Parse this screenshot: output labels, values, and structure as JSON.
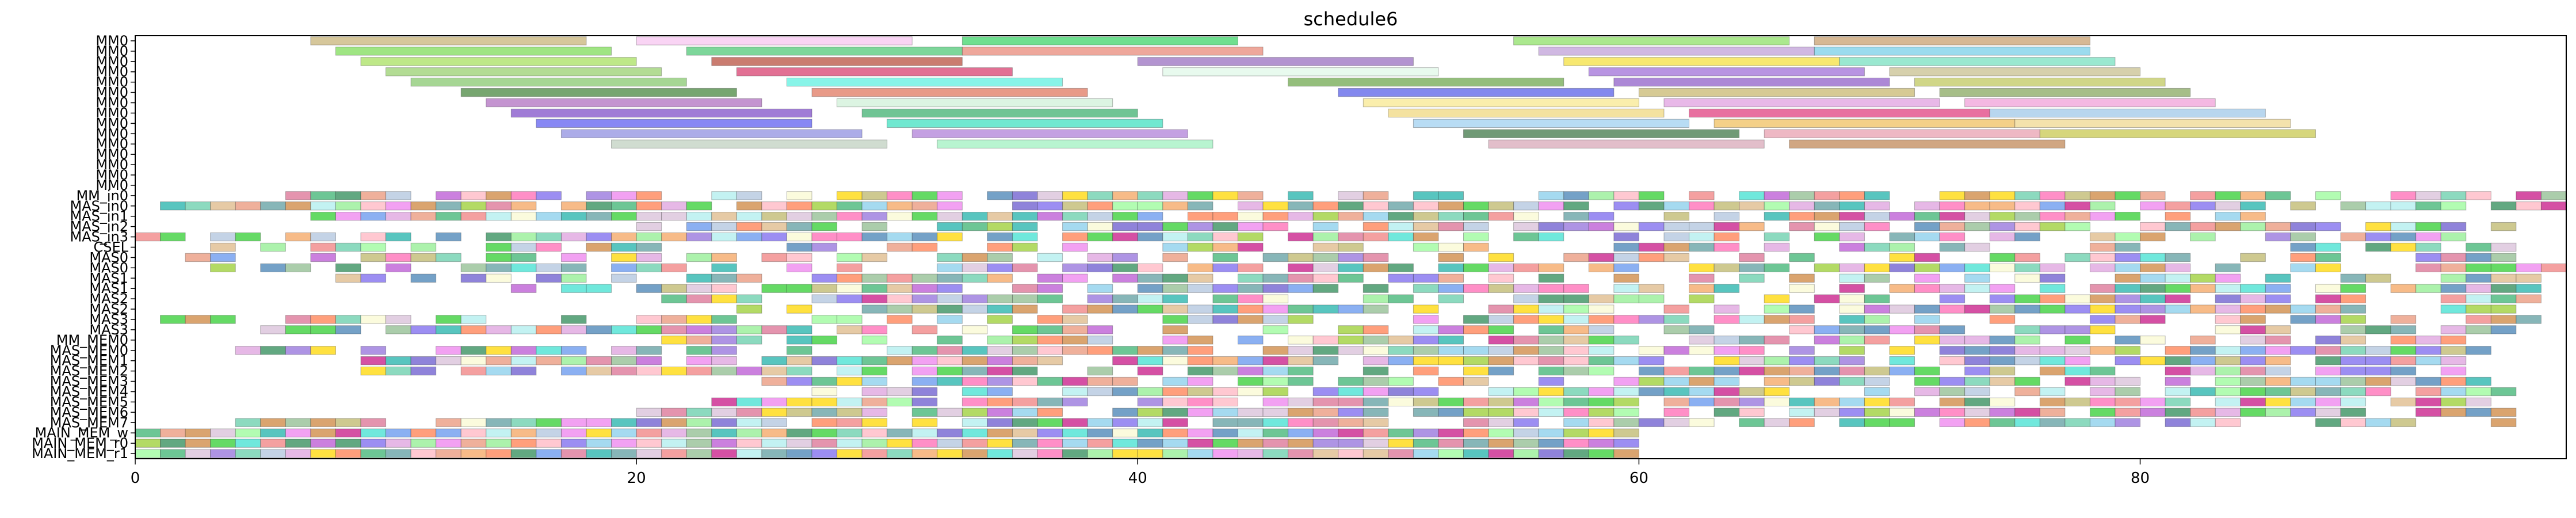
{
  "chart_data": {
    "type": "gantt",
    "title": "schedule6",
    "xlabel": "",
    "ylabel": "",
    "xlim": [
      0,
      97
    ],
    "x_ticks": [
      0,
      20,
      40,
      60,
      80
    ],
    "grid": false,
    "rows": [
      "MM0",
      "MM0",
      "MM0",
      "MM0",
      "MM0",
      "MM0",
      "MM0",
      "MM0",
      "MM0",
      "MM0",
      "MM0",
      "MM0",
      "MM0",
      "MM0",
      "MM0",
      "MM_in0",
      "MAS_in0",
      "MAS_in1",
      "MAS_in2",
      "MAS_in3",
      "CSEL",
      "MAS0",
      "MAS0",
      "MAS1",
      "MAS1",
      "MAS2",
      "MAS2",
      "MAS3",
      "MAS3",
      "MM_MEM0",
      "MAS_MEM0",
      "MAS_MEM1",
      "MAS_MEM2",
      "MAS_MEM3",
      "MAS_MEM4",
      "MAS_MEM5",
      "MAS_MEM6",
      "MAS_MEM7",
      "MAIN_MEM_w",
      "MAIN_MEM_r0",
      "MAIN_MEM_r1"
    ],
    "palette": [
      "#8fbc8f",
      "#ee82ee",
      "#3cb371",
      "#f08080",
      "#9370db",
      "#ffd700",
      "#40e0d0",
      "#b0c4de",
      "#90ee90",
      "#db7093",
      "#6495ed",
      "#f4a460",
      "#ba55d3",
      "#20b2aa",
      "#ff69b4",
      "#9acd32",
      "#87ceeb",
      "#cd853f",
      "#66cdaa",
      "#dda0dd",
      "#6a5acd",
      "#bdb76b",
      "#32cd32",
      "#ffb6c1",
      "#4682b4",
      "#e9967a",
      "#7b68ee",
      "#afeeee",
      "#c71585",
      "#deb887",
      "#2e8b57",
      "#fafad2",
      "#5f9ea0",
      "#ff7f50",
      "#98fb98",
      "#d8bfd8"
    ],
    "mm_bars": [
      {
        "row": 0,
        "start": 7,
        "end": 18,
        "color": "#c8b47a"
      },
      {
        "row": 0,
        "start": 20,
        "end": 31,
        "color": "#f7c6f0"
      },
      {
        "row": 0,
        "start": 33,
        "end": 44,
        "color": "#3fd46a"
      },
      {
        "row": 0,
        "start": 55,
        "end": 66,
        "color": "#8fe068"
      },
      {
        "row": 0,
        "start": 67,
        "end": 78,
        "color": "#c8a070"
      },
      {
        "row": 1,
        "start": 8,
        "end": 19,
        "color": "#7fdc5a"
      },
      {
        "row": 1,
        "start": 22,
        "end": 33,
        "color": "#52c878"
      },
      {
        "row": 1,
        "start": 33,
        "end": 45,
        "color": "#e88a7a"
      },
      {
        "row": 1,
        "start": 56,
        "end": 67,
        "color": "#c0a0d8"
      },
      {
        "row": 1,
        "start": 67,
        "end": 78,
        "color": "#7acfe8"
      },
      {
        "row": 2,
        "start": 9,
        "end": 20,
        "color": "#a8e060"
      },
      {
        "row": 2,
        "start": 23,
        "end": 33,
        "color": "#b85040"
      },
      {
        "row": 2,
        "start": 40,
        "end": 51,
        "color": "#9a70c0"
      },
      {
        "row": 2,
        "start": 57,
        "end": 68,
        "color": "#f4e040"
      },
      {
        "row": 2,
        "start": 68,
        "end": 79,
        "color": "#78e0c0"
      },
      {
        "row": 3,
        "start": 10,
        "end": 21,
        "color": "#9ad070"
      },
      {
        "row": 3,
        "start": 24,
        "end": 35,
        "color": "#d84070"
      },
      {
        "row": 3,
        "start": 41,
        "end": 52,
        "color": "#e0f8e8"
      },
      {
        "row": 3,
        "start": 58,
        "end": 69,
        "color": "#a070d8"
      },
      {
        "row": 3,
        "start": 70,
        "end": 80,
        "color": "#c8c090"
      },
      {
        "row": 4,
        "start": 11,
        "end": 22,
        "color": "#88c870"
      },
      {
        "row": 4,
        "start": 26,
        "end": 37,
        "color": "#60f0e0"
      },
      {
        "row": 4,
        "start": 46,
        "end": 57,
        "color": "#70a850"
      },
      {
        "row": 4,
        "start": 59,
        "end": 70,
        "color": "#9060c8"
      },
      {
        "row": 4,
        "start": 71,
        "end": 81,
        "color": "#c0c860"
      },
      {
        "row": 5,
        "start": 13,
        "end": 24,
        "color": "#4a8840"
      },
      {
        "row": 5,
        "start": 27,
        "end": 38,
        "color": "#e07860"
      },
      {
        "row": 5,
        "start": 48,
        "end": 59,
        "color": "#5a60e8"
      },
      {
        "row": 5,
        "start": 60,
        "end": 71,
        "color": "#c8b870"
      },
      {
        "row": 5,
        "start": 72,
        "end": 82,
        "color": "#88a860"
      },
      {
        "row": 6,
        "start": 14,
        "end": 25,
        "color": "#b070c0"
      },
      {
        "row": 6,
        "start": 28,
        "end": 39,
        "color": "#d0f0d8"
      },
      {
        "row": 6,
        "start": 49,
        "end": 60,
        "color": "#f8e890"
      },
      {
        "row": 6,
        "start": 61,
        "end": 72,
        "color": "#e0a0e0"
      },
      {
        "row": 6,
        "start": 73,
        "end": 83,
        "color": "#f0a0d8"
      },
      {
        "row": 7,
        "start": 15,
        "end": 27,
        "color": "#8050c8"
      },
      {
        "row": 7,
        "start": 29,
        "end": 40,
        "color": "#40b070"
      },
      {
        "row": 7,
        "start": 50,
        "end": 61,
        "color": "#f0d880"
      },
      {
        "row": 7,
        "start": 62,
        "end": 74,
        "color": "#e04080"
      },
      {
        "row": 7,
        "start": 74,
        "end": 85,
        "color": "#a0c8e8"
      },
      {
        "row": 8,
        "start": 16,
        "end": 27,
        "color": "#6060f0"
      },
      {
        "row": 8,
        "start": 30,
        "end": 41,
        "color": "#40e0c0"
      },
      {
        "row": 8,
        "start": 51,
        "end": 62,
        "color": "#a0d0f0"
      },
      {
        "row": 8,
        "start": 63,
        "end": 75,
        "color": "#f0c060"
      },
      {
        "row": 8,
        "start": 75,
        "end": 86,
        "color": "#f0d890"
      },
      {
        "row": 9,
        "start": 17,
        "end": 29,
        "color": "#9090e0"
      },
      {
        "row": 9,
        "start": 31,
        "end": 42,
        "color": "#b080d8"
      },
      {
        "row": 9,
        "start": 53,
        "end": 64,
        "color": "#407848"
      },
      {
        "row": 9,
        "start": 65,
        "end": 76,
        "color": "#e8a0b0"
      },
      {
        "row": 9,
        "start": 76,
        "end": 87,
        "color": "#c8c850"
      },
      {
        "row": 10,
        "start": 19,
        "end": 30,
        "color": "#c0d0c0"
      },
      {
        "row": 10,
        "start": 32,
        "end": 43,
        "color": "#a0f0c0"
      },
      {
        "row": 10,
        "start": 54,
        "end": 65,
        "color": "#d8a8b8"
      },
      {
        "row": 10,
        "start": 66,
        "end": 77,
        "color": "#c08858"
      }
    ],
    "dense_rows": [
      {
        "row": 15,
        "start": 6,
        "end": 97,
        "seed": 11,
        "density": 0.75
      },
      {
        "row": 16,
        "start": 1,
        "end": 97,
        "seed": 23,
        "density": 0.85
      },
      {
        "row": 17,
        "start": 7,
        "end": 85,
        "seed": 37,
        "density": 0.8
      },
      {
        "row": 18,
        "start": 20,
        "end": 95,
        "seed": 41,
        "density": 0.85
      },
      {
        "row": 19,
        "start": 0,
        "end": 93,
        "seed": 53,
        "density": 0.7
      },
      {
        "row": 20,
        "start": 3,
        "end": 95,
        "seed": 61,
        "density": 0.55
      },
      {
        "row": 21,
        "start": 2,
        "end": 97,
        "seed": 71,
        "density": 0.6
      },
      {
        "row": 22,
        "start": 3,
        "end": 97,
        "seed": 79,
        "density": 0.65
      },
      {
        "row": 23,
        "start": 8,
        "end": 96,
        "seed": 83,
        "density": 0.7
      },
      {
        "row": 24,
        "start": 15,
        "end": 97,
        "seed": 89,
        "density": 0.75
      },
      {
        "row": 25,
        "start": 21,
        "end": 96,
        "seed": 97,
        "density": 0.75
      },
      {
        "row": 26,
        "start": 24,
        "end": 95,
        "seed": 101,
        "density": 0.8
      },
      {
        "row": 27,
        "start": 1,
        "end": 96,
        "seed": 103,
        "density": 0.7
      },
      {
        "row": 28,
        "start": 5,
        "end": 95,
        "seed": 107,
        "density": 0.7
      },
      {
        "row": 29,
        "start": 21,
        "end": 93,
        "seed": 109,
        "density": 0.75
      },
      {
        "row": 30,
        "start": 4,
        "end": 94,
        "seed": 113,
        "density": 0.75
      },
      {
        "row": 31,
        "start": 9,
        "end": 94,
        "seed": 127,
        "density": 0.8
      },
      {
        "row": 32,
        "start": 9,
        "end": 93,
        "seed": 131,
        "density": 0.8
      },
      {
        "row": 33,
        "start": 25,
        "end": 95,
        "seed": 137,
        "density": 0.8
      },
      {
        "row": 34,
        "start": 27,
        "end": 95,
        "seed": 139,
        "density": 0.8
      },
      {
        "row": 35,
        "start": 23,
        "end": 95,
        "seed": 149,
        "density": 0.85
      },
      {
        "row": 36,
        "start": 20,
        "end": 95,
        "seed": 151,
        "density": 0.85
      },
      {
        "row": 37,
        "start": 4,
        "end": 95,
        "seed": 157,
        "density": 0.8
      },
      {
        "row": 38,
        "start": 0,
        "end": 60,
        "seed": 163,
        "density": 0.95
      },
      {
        "row": 39,
        "start": 0,
        "end": 60,
        "seed": 167,
        "density": 1.0
      },
      {
        "row": 40,
        "start": 0,
        "end": 60,
        "seed": 173,
        "density": 1.0
      }
    ]
  }
}
